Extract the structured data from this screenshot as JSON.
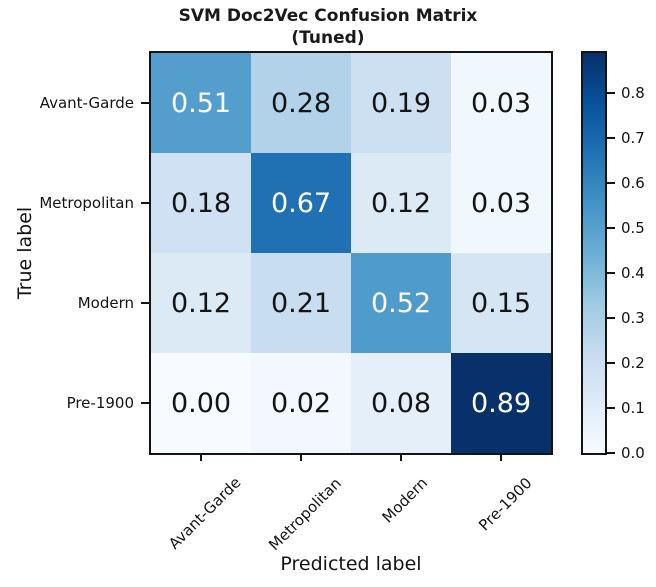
{
  "chart_data": {
    "type": "heatmap",
    "title": "SVM Doc2Vec Confusion Matrix",
    "subtitle": "(Tuned)",
    "xlabel": "Predicted label",
    "ylabel": "True label",
    "x_categories": [
      "Avant-Garde",
      "Metropolitan",
      "Modern",
      "Pre-1900"
    ],
    "y_categories": [
      "Avant-Garde",
      "Metropolitan",
      "Modern",
      "Pre-1900"
    ],
    "matrix": [
      [
        0.51,
        0.28,
        0.19,
        0.03
      ],
      [
        0.18,
        0.67,
        0.12,
        0.03
      ],
      [
        0.12,
        0.21,
        0.52,
        0.15
      ],
      [
        0.0,
        0.02,
        0.08,
        0.89
      ]
    ],
    "value_decimals": 2,
    "vmin": 0.0,
    "vmax": 0.89,
    "colormap": "Blues",
    "colormap_stops": [
      "#f7fbff",
      "#deebf7",
      "#c6dbef",
      "#9ecae1",
      "#6baed6",
      "#4292c6",
      "#2171b5",
      "#08519c",
      "#08306b"
    ],
    "colorbar_ticks": [
      "0.0",
      "0.1",
      "0.2",
      "0.3",
      "0.4",
      "0.5",
      "0.6",
      "0.7",
      "0.8"
    ],
    "colorbar_position": "right",
    "grid": false,
    "text_color_light": "#ffffff",
    "text_color_dark": "#141414",
    "axis_color": "#141414"
  }
}
